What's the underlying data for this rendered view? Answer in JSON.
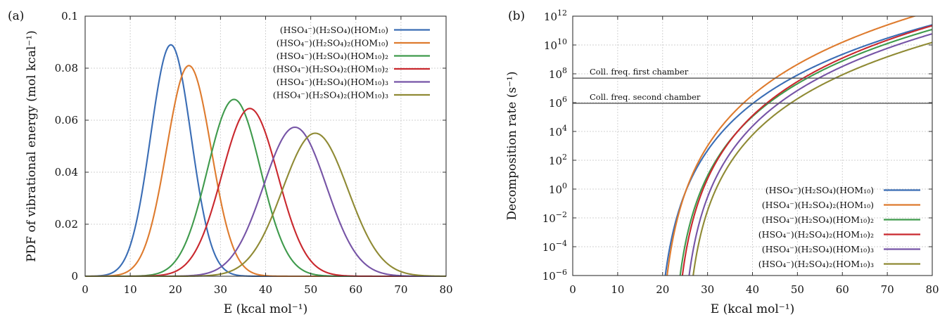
{
  "colors": {
    "blue": "#3a6db5",
    "orange": "#de7b2e",
    "green": "#3f9a4c",
    "red": "#c9282e",
    "purple": "#7654a6",
    "olive": "#8f8a34",
    "hline": "#555555"
  },
  "chart_data": [
    {
      "type": "line",
      "panel_label": "(a)",
      "xlabel": "E (kcal mol⁻¹)",
      "ylabel": "PDF of vibrational energy (mol kcal⁻¹)",
      "xlim": [
        0,
        80
      ],
      "ylim": [
        0,
        0.1
      ],
      "y_scale": "linear",
      "x_ticks": [
        "0",
        "10",
        "20",
        "30",
        "40",
        "50",
        "60",
        "70",
        "80"
      ],
      "y_ticks": [
        "0",
        "0.02",
        "0.04",
        "0.06",
        "0.08",
        "0.1"
      ],
      "grid": true,
      "legend_position": "top-right",
      "series": [
        {
          "name": "(HSO₄⁻)(H₂SO₄)(HOM₁₀)",
          "color": "blue",
          "peak_x": 19,
          "peak_y": 0.089
        },
        {
          "name": "(HSO₄⁻)(H₂SO₄)₂(HOM₁₀)",
          "color": "orange",
          "peak_x": 23,
          "peak_y": 0.081
        },
        {
          "name": "(HSO₄⁻)(H₂SO₄)(HOM₁₀)₂",
          "color": "green",
          "peak_x": 33,
          "peak_y": 0.068
        },
        {
          "name": "(HSO₄⁻)(H₂SO₄)₂(HOM₁₀)₂",
          "color": "red",
          "peak_x": 36.5,
          "peak_y": 0.0645
        },
        {
          "name": "(HSO₄⁻)(H₂SO₄)(HOM₁₀)₃",
          "color": "purple",
          "peak_x": 46.5,
          "peak_y": 0.0573
        },
        {
          "name": "(HSO₄⁻)(H₂SO₄)₂(HOM₁₀)₃",
          "color": "olive",
          "peak_x": 51,
          "peak_y": 0.055
        }
      ]
    },
    {
      "type": "line",
      "panel_label": "(b)",
      "xlabel": "E (kcal mol⁻¹)",
      "ylabel": "Decomposition rate (s⁻¹)",
      "xlim": [
        0,
        80
      ],
      "ylim": [
        1e-06,
        1000000000000.0
      ],
      "y_scale": "log",
      "x_ticks": [
        "0",
        "10",
        "20",
        "30",
        "40",
        "50",
        "60",
        "70",
        "80"
      ],
      "y_tick_exponents": [
        "−6",
        "−4",
        "−2",
        "0",
        "2",
        "4",
        "6",
        "8",
        "10",
        "12"
      ],
      "grid": true,
      "legend_position": "bottom-right",
      "horizontal_lines": [
        {
          "label": "Coll. freq. first chamber",
          "y": 50000000.0
        },
        {
          "label": "Coll. freq. second chamber",
          "y": 900000.0
        }
      ],
      "series": [
        {
          "name": "(HSO₄⁻)(H₂SO₄)(HOM₁₀)",
          "color": "blue",
          "x_at_1e-6": 20.6,
          "x_end": 80,
          "y_end": 250000000000.0
        },
        {
          "name": "(HSO₄⁻)(H₂SO₄)₂(HOM₁₀)",
          "color": "orange",
          "x_at_1e-6": 21.0,
          "x_end": 76,
          "y_end": 1000000000000.0
        },
        {
          "name": "(HSO₄⁻)(H₂SO₄)(HOM₁₀)₂",
          "color": "green",
          "x_at_1e-6": 23.9,
          "x_end": 80,
          "y_end": 120000000000.0
        },
        {
          "name": "(HSO₄⁻)(H₂SO₄)₂(HOM₁₀)₂",
          "color": "red",
          "x_at_1e-6": 24.4,
          "x_end": 80,
          "y_end": 220000000000.0
        },
        {
          "name": "(HSO₄⁻)(H₂SO₄)(HOM₁₀)₃",
          "color": "purple",
          "x_at_1e-6": 25.9,
          "x_end": 80,
          "y_end": 60000000000.0
        },
        {
          "name": "(HSO₄⁻)(H₂SO₄)₂(HOM₁₀)₃",
          "color": "olive",
          "x_at_1e-6": 26.8,
          "x_end": 80,
          "y_end": 15000000000.0
        }
      ]
    }
  ]
}
